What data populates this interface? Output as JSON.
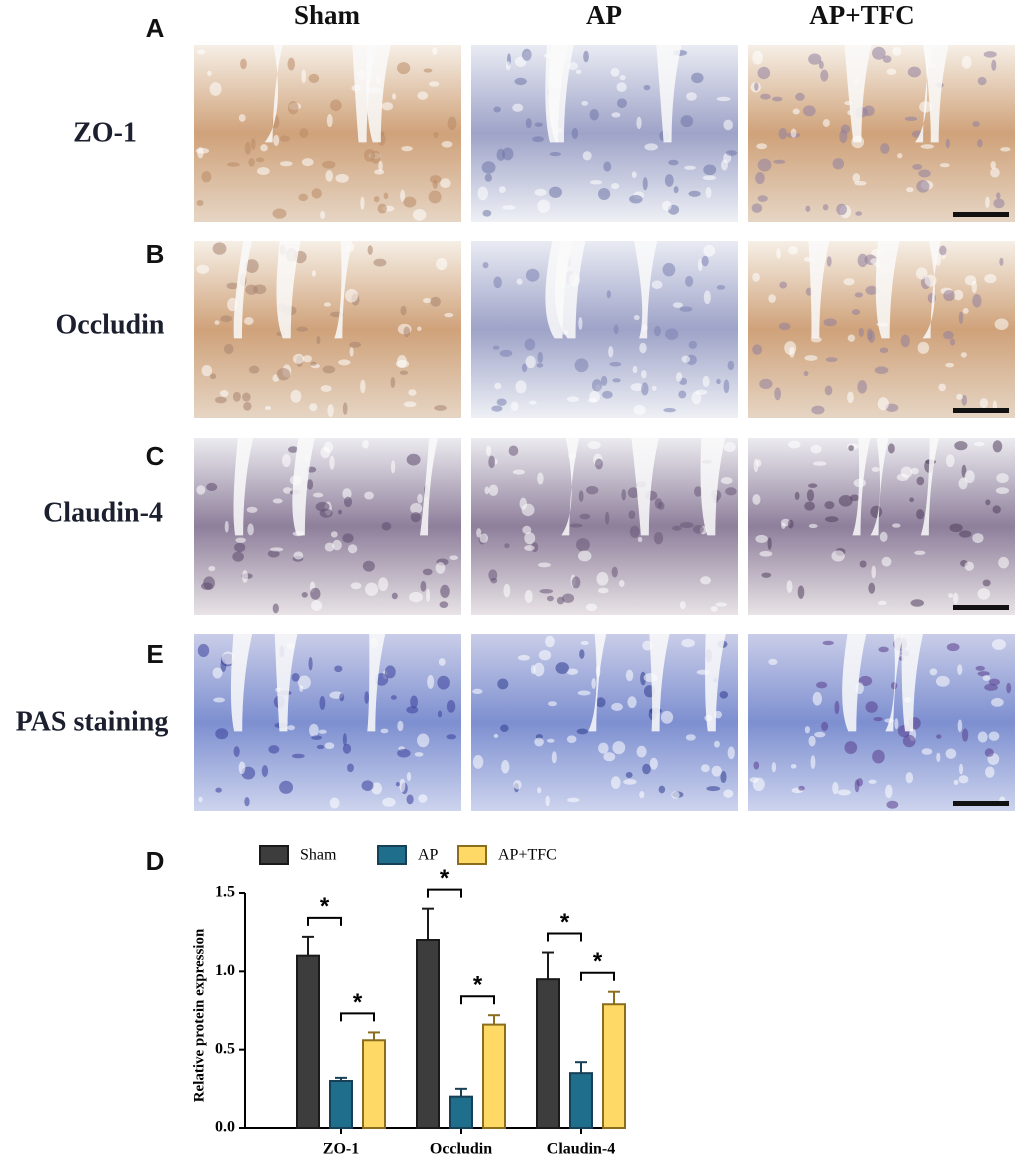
{
  "panel_letters": {
    "A": "A",
    "B": "B",
    "C": "C",
    "E": "E",
    "D": "D"
  },
  "column_headers": [
    "Sham",
    "AP",
    "AP+TFC"
  ],
  "row_labels": [
    "ZO-1",
    "Occludin",
    "Claudin-4",
    "PAS staining"
  ],
  "chart_data": {
    "type": "bar",
    "y_label": "Relative protein expression",
    "categories": [
      "ZO-1",
      "Occludin",
      "Claudin-4"
    ],
    "series": [
      {
        "name": "Sham",
        "color": "#3d3d3d",
        "edge": "#1a1a1a",
        "values": [
          1.1,
          1.2,
          0.95
        ],
        "errors": [
          0.12,
          0.2,
          0.17
        ]
      },
      {
        "name": "AP",
        "color": "#1f6e8c",
        "edge": "#173f55",
        "values": [
          0.3,
          0.2,
          0.35
        ],
        "errors": [
          0.02,
          0.05,
          0.07
        ]
      },
      {
        "name": "AP+TFC",
        "color": "#ffd966",
        "edge": "#8a6d1d",
        "values": [
          0.56,
          0.66,
          0.79
        ],
        "errors": [
          0.05,
          0.06,
          0.08
        ]
      }
    ],
    "ylim": [
      0,
      1.5
    ],
    "yticks": [
      {
        "value": 0,
        "label": "0.0"
      },
      {
        "value": 0.5,
        "label": "0.5"
      },
      {
        "value": 1,
        "label": "1.0"
      },
      {
        "value": 1.5,
        "label": "1.5"
      }
    ],
    "annotations": [
      {
        "label": "*",
        "category": "ZO-1",
        "between": [
          "Sham",
          "AP"
        ]
      },
      {
        "label": "*",
        "category": "ZO-1",
        "between": [
          "AP",
          "AP+TFC"
        ]
      },
      {
        "label": "*",
        "category": "Occludin",
        "between": [
          "Sham",
          "AP"
        ]
      },
      {
        "label": "*",
        "category": "Occludin",
        "between": [
          "AP",
          "AP+TFC"
        ]
      },
      {
        "label": "*",
        "category": "Claudin-4",
        "between": [
          "Sham",
          "AP"
        ]
      },
      {
        "label": "*",
        "category": "Claudin-4",
        "between": [
          "AP",
          "AP+TFC"
        ]
      }
    ],
    "legend": "top"
  }
}
